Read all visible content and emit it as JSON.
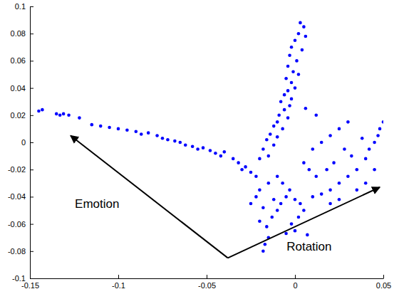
{
  "chart_data": {
    "type": "scatter",
    "color": "#0000ff",
    "marker": "dot",
    "xlim": [
      -0.15,
      0.05
    ],
    "xticks": [
      -0.15,
      -0.1,
      -0.05,
      0,
      0.05
    ],
    "ylim": [
      -0.1,
      0.1
    ],
    "yticks": [
      -0.1,
      -0.08,
      -0.06,
      -0.04,
      -0.02,
      0,
      0.02,
      0.04,
      0.06,
      0.08,
      0.1
    ],
    "arrows": [
      {
        "label": "Emotion",
        "from": [
          -0.038,
          -0.085
        ],
        "to": [
          -0.127,
          0.005
        ],
        "label_at": [
          -0.112,
          -0.046
        ]
      },
      {
        "label": "Rotation",
        "from": [
          -0.038,
          -0.085
        ],
        "to": [
          0.048,
          -0.033
        ],
        "label_at": [
          0.008,
          -0.077
        ]
      }
    ],
    "x": [
      -0.145,
      -0.143,
      -0.135,
      -0.133,
      -0.131,
      -0.128,
      -0.122,
      -0.115,
      -0.11,
      -0.105,
      -0.1,
      -0.095,
      -0.09,
      -0.087,
      -0.083,
      -0.078,
      -0.075,
      -0.072,
      -0.068,
      -0.065,
      -0.062,
      -0.058,
      -0.055,
      -0.052,
      -0.048,
      -0.045,
      -0.042,
      -0.04,
      -0.035,
      -0.032,
      -0.03,
      -0.028,
      -0.025,
      -0.022,
      -0.018,
      -0.017,
      -0.015,
      -0.016,
      -0.013,
      -0.02,
      -0.01,
      -0.008,
      -0.012,
      -0.018,
      -0.022,
      -0.025,
      -0.005,
      0,
      0.003,
      -0.003,
      -0.007,
      -0.01,
      -0.015,
      -0.02,
      -0.005,
      0.002,
      0.005,
      -0.002,
      0.007,
      0,
      0.003,
      0.005,
      0.002,
      0.006,
      0,
      -0.002,
      0.004,
      -0.003,
      0.001,
      -0.004,
      -0.001,
      0.002,
      -0.005,
      -0.002,
      0,
      -0.004,
      -0.006,
      -0.002,
      -0.008,
      -0.003,
      -0.006,
      -0.009,
      -0.004,
      -0.01,
      -0.012,
      -0.007,
      -0.014,
      -0.01,
      -0.016,
      -0.012,
      -0.018,
      -0.015,
      -0.02,
      0.01,
      0.015,
      0.02,
      0.025,
      0.03,
      0.035,
      0.04,
      0.042,
      0.045,
      0.047,
      0.048,
      0.05,
      0.038,
      0.032,
      0.028,
      0.022,
      0.018,
      0.012,
      0.008,
      0.005,
      0.01,
      0.015,
      0.02,
      0.025,
      0.03,
      0.012,
      0.006,
      0.045,
      0.04,
      0.035,
      0.025,
      0.02
    ],
    "values": [
      0.023,
      0.024,
      0.021,
      0.02,
      0.021,
      0.02,
      0.018,
      0.013,
      0.012,
      0.011,
      0.01,
      0.009,
      0.008,
      0.006,
      0.007,
      0.005,
      0.003,
      0.002,
      0.001,
      0,
      -0.002,
      -0.003,
      -0.005,
      -0.004,
      -0.006,
      -0.008,
      -0.01,
      -0.007,
      -0.012,
      -0.015,
      -0.02,
      -0.018,
      -0.022,
      -0.025,
      -0.08,
      -0.075,
      -0.07,
      -0.062,
      -0.055,
      -0.058,
      -0.05,
      -0.045,
      -0.042,
      -0.048,
      -0.04,
      -0.045,
      -0.04,
      -0.042,
      -0.045,
      -0.035,
      -0.03,
      -0.025,
      -0.03,
      -0.035,
      -0.067,
      -0.055,
      -0.05,
      -0.06,
      -0.068,
      -0.065,
      0.088,
      0.085,
      0.08,
      0.078,
      0.075,
      0.07,
      0.068,
      0.064,
      0.06,
      0.056,
      0.052,
      0.05,
      0.047,
      0.044,
      0.04,
      0.038,
      0.035,
      0.032,
      0.03,
      0.027,
      0.024,
      0.02,
      0.018,
      0.015,
      0.012,
      0.01,
      0.006,
      0.004,
      0.002,
      -0.002,
      -0.005,
      -0.01,
      -0.012,
      -0.04,
      -0.038,
      -0.035,
      -0.03,
      -0.025,
      -0.02,
      -0.012,
      -0.005,
      0,
      0.005,
      0.01,
      0.015,
      0.003,
      -0.01,
      -0.005,
      -0.015,
      -0.02,
      -0.025,
      -0.02,
      -0.015,
      -0.005,
      0,
      0.005,
      0.01,
      0.015,
      0.02,
      0.025,
      -0.02,
      -0.03,
      -0.035,
      -0.042,
      -0.045
    ]
  }
}
